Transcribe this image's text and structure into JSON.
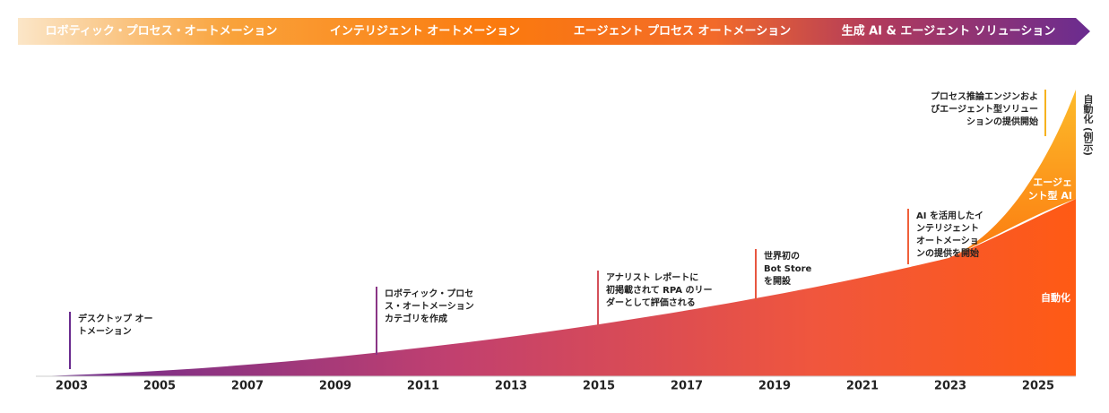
{
  "banner": {
    "phases": [
      "ロボティック・プロセス・オートメーション",
      "インテリジェント オートメーション",
      "エージェント プロセス オートメーション",
      "生成 AI & エージェント ソリューション"
    ]
  },
  "axis": {
    "years": [
      "2003",
      "2005",
      "2007",
      "2009",
      "2011",
      "2013",
      "2015",
      "2017",
      "2019",
      "2021",
      "2023",
      "2025"
    ]
  },
  "milestones": [
    {
      "lines": [
        "デスクトップ オー",
        "トメーション"
      ]
    },
    {
      "lines": [
        "ロボティック・プロセ",
        "ス・オートメーション",
        "カテゴリを作成"
      ]
    },
    {
      "lines": [
        "アナリスト レポートに",
        "初掲載されて RPA のリー",
        "ダーとして評価される"
      ]
    },
    {
      "lines": [
        "世界初の",
        "Bot Store",
        "を開設"
      ]
    },
    {
      "lines": [
        "AI を活用したイ",
        "ンテリジェント",
        "オートメーショ",
        "ンの提供を開始"
      ]
    },
    {
      "lines": [
        "プロセス推論エンジンおよ",
        "びエージェント型ソリュー",
        "ションの提供開始"
      ]
    }
  ],
  "areas": {
    "vertical_label": "自動化 (例示)",
    "agentic": [
      "エージェ",
      "ント型 AI"
    ],
    "automation": "自動化"
  }
}
